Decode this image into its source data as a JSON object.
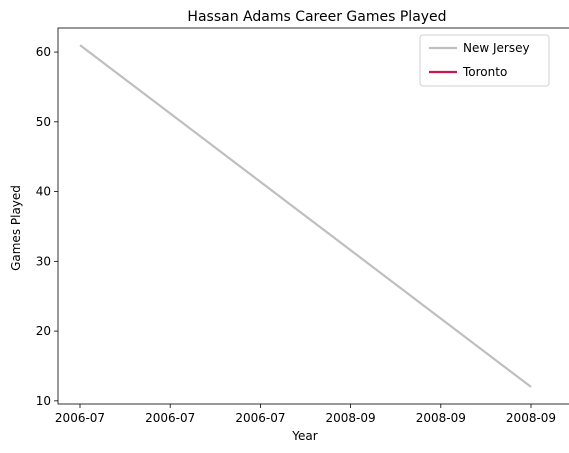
{
  "chart_data": {
    "type": "line",
    "title": "Hassan Adams Career Games Played",
    "xlabel": "Year",
    "ylabel": "Games Played",
    "x_tick_labels": [
      "2006-07",
      "2006-07",
      "2006-07",
      "2008-09",
      "2008-09",
      "2008-09"
    ],
    "y_ticks": [
      10,
      20,
      30,
      40,
      50,
      60
    ],
    "ylim": [
      9.55,
      63.45
    ],
    "grid": false,
    "legend_position": "top-right",
    "series": [
      {
        "name": "New Jersey",
        "color": "#bfbfbf",
        "x": [
          "2006-07",
          "2008-09"
        ],
        "values": [
          61,
          12
        ]
      },
      {
        "name": "Toronto",
        "color": "#c8174e",
        "x": [],
        "values": []
      }
    ]
  }
}
